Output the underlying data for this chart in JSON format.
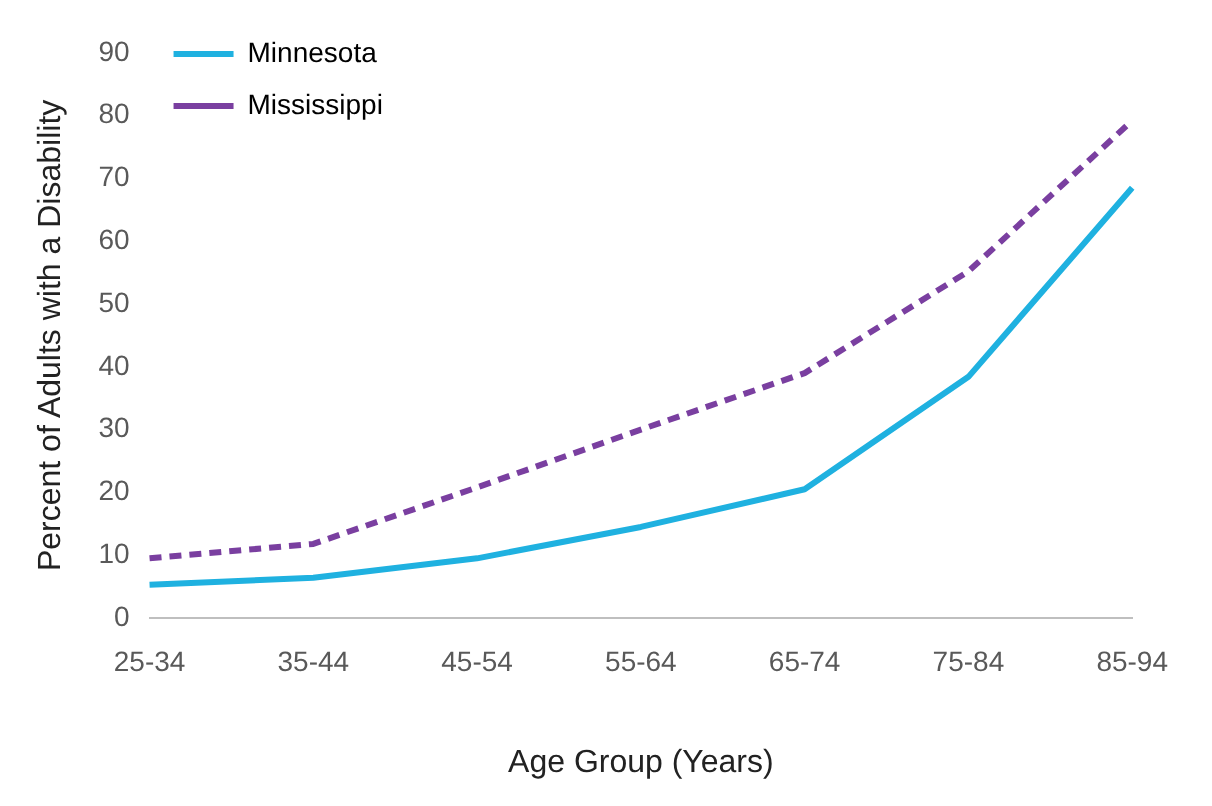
{
  "chart_data": {
    "type": "line",
    "xlabel": "Age Group (Years)",
    "ylabel": "Percent of Adults with a Disability",
    "categories": [
      "25-34",
      "35-44",
      "45-54",
      "55-64",
      "65-74",
      "75-84",
      "85-94"
    ],
    "series": [
      {
        "name": "Minnesota",
        "color": "#1fb1e0",
        "line_style": "solid",
        "values": [
          5.3,
          6.4,
          9.5,
          14.5,
          20.5,
          38.4,
          68.5
        ]
      },
      {
        "name": "Mississippi",
        "color": "#7a3fa0",
        "line_style": "dashed",
        "values": [
          9.5,
          11.8,
          20.8,
          30,
          39,
          55.2,
          79.2
        ]
      }
    ],
    "ylim": [
      0,
      90
    ],
    "yticks": [
      0,
      10,
      20,
      30,
      40,
      50,
      60,
      70,
      80,
      90
    ],
    "grid": false,
    "legend": "top left",
    "marker": "none"
  }
}
